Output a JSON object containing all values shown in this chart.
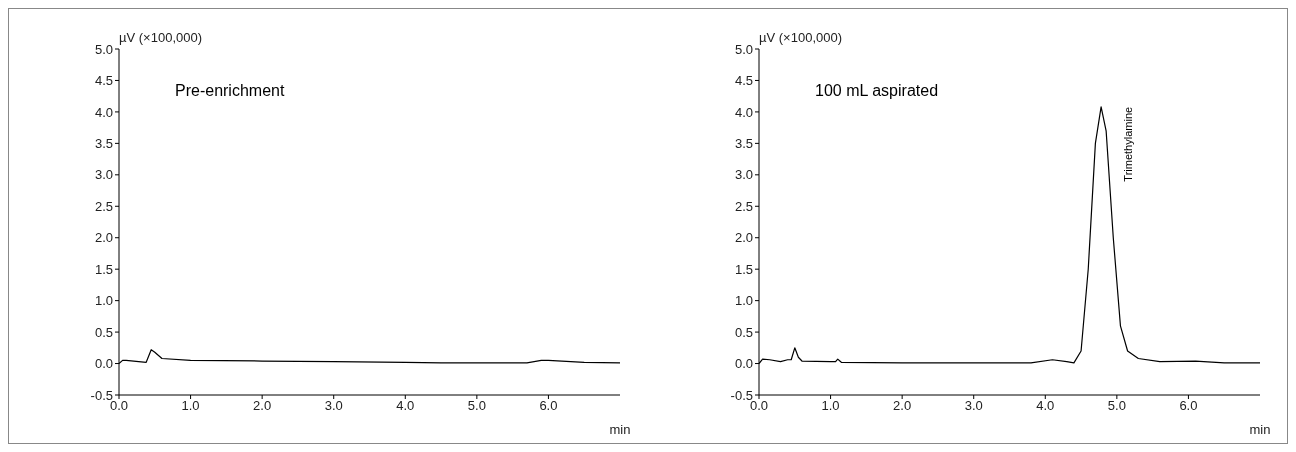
{
  "chart_data": [
    {
      "type": "line",
      "xlabel": "min",
      "ylabel": "µV (×100,000)",
      "xlim": [
        0,
        7
      ],
      "xticks": [
        {
          "value": 0,
          "label": "0.0"
        },
        {
          "value": 1,
          "label": "1.0"
        },
        {
          "value": 2,
          "label": "2.0"
        },
        {
          "value": 3,
          "label": "3.0"
        },
        {
          "value": 4,
          "label": "4.0"
        },
        {
          "value": 5,
          "label": "5.0"
        },
        {
          "value": 6,
          "label": "6.0"
        }
      ],
      "ylim": [
        -0.5,
        5
      ],
      "yticks": [
        {
          "value": -0.5,
          "label": "-0.5"
        },
        {
          "value": 0,
          "label": "0.0"
        },
        {
          "value": 0.5,
          "label": "0.5"
        },
        {
          "value": 1,
          "label": "1.0"
        },
        {
          "value": 1.5,
          "label": "1.5"
        },
        {
          "value": 2,
          "label": "2.0"
        },
        {
          "value": 2.5,
          "label": "2.5"
        },
        {
          "value": 3,
          "label": "3.0"
        },
        {
          "value": 3.5,
          "label": "3.5"
        },
        {
          "value": 4,
          "label": "4.0"
        },
        {
          "value": 4.5,
          "label": "4.5"
        },
        {
          "value": 5,
          "label": "5.0"
        }
      ],
      "marker": "none",
      "annotations": [
        "Pre-enrichment"
      ],
      "series": [
        {
          "color": "#000000",
          "x": [
            0,
            0.05,
            0.1,
            0.38,
            0.45,
            0.5,
            0.6,
            1.0,
            2.0,
            3.0,
            4.0,
            4.5,
            5.0,
            5.7,
            5.9,
            6.0,
            6.5,
            7.0
          ],
          "values": [
            0,
            0.05,
            0.05,
            0.02,
            0.22,
            0.18,
            0.08,
            0.05,
            0.04,
            0.03,
            0.02,
            0.01,
            0.01,
            0.01,
            0.05,
            0.05,
            0.02,
            0.01
          ]
        }
      ]
    },
    {
      "type": "line",
      "xlabel": "min",
      "ylabel": "µV (×100,000)",
      "xlim": [
        0,
        7
      ],
      "xticks": [
        {
          "value": 0,
          "label": "0.0"
        },
        {
          "value": 1,
          "label": "1.0"
        },
        {
          "value": 2,
          "label": "2.0"
        },
        {
          "value": 3,
          "label": "3.0"
        },
        {
          "value": 4,
          "label": "4.0"
        },
        {
          "value": 5,
          "label": "5.0"
        },
        {
          "value": 6,
          "label": "6.0"
        }
      ],
      "ylim": [
        -0.5,
        5
      ],
      "yticks": [
        {
          "value": -0.5,
          "label": "-0.5"
        },
        {
          "value": 0,
          "label": "0.0"
        },
        {
          "value": 0.5,
          "label": "0.5"
        },
        {
          "value": 1,
          "label": "1.0"
        },
        {
          "value": 1.5,
          "label": "1.5"
        },
        {
          "value": 2,
          "label": "2.0"
        },
        {
          "value": 2.5,
          "label": "2.5"
        },
        {
          "value": 3,
          "label": "3.0"
        },
        {
          "value": 3.5,
          "label": "3.5"
        },
        {
          "value": 4,
          "label": "4.0"
        },
        {
          "value": 4.5,
          "label": "4.5"
        },
        {
          "value": 5,
          "label": "5.0"
        }
      ],
      "marker": "none",
      "annotations": [
        "100 mL aspirated",
        {
          "text": "Trimethylamine",
          "x": 4.78,
          "y": 4.08
        }
      ],
      "series": [
        {
          "color": "#000000",
          "x": [
            0,
            0.05,
            0.15,
            0.3,
            0.4,
            0.45,
            0.5,
            0.55,
            0.6,
            1.0,
            1.07,
            1.1,
            1.15,
            2.0,
            3.5,
            3.8,
            4.1,
            4.3,
            4.4,
            4.5,
            4.6,
            4.7,
            4.78,
            4.85,
            4.95,
            5.05,
            5.15,
            5.3,
            5.6,
            6.1,
            6.5,
            7.0
          ],
          "values": [
            0,
            0.07,
            0.06,
            0.03,
            0.06,
            0.06,
            0.25,
            0.1,
            0.04,
            0.03,
            0.03,
            0.07,
            0.02,
            0.01,
            0.01,
            0.01,
            0.06,
            0.03,
            0.01,
            0.2,
            1.5,
            3.5,
            4.08,
            3.7,
            2.0,
            0.6,
            0.2,
            0.08,
            0.03,
            0.04,
            0.01,
            0.01
          ]
        }
      ]
    }
  ]
}
